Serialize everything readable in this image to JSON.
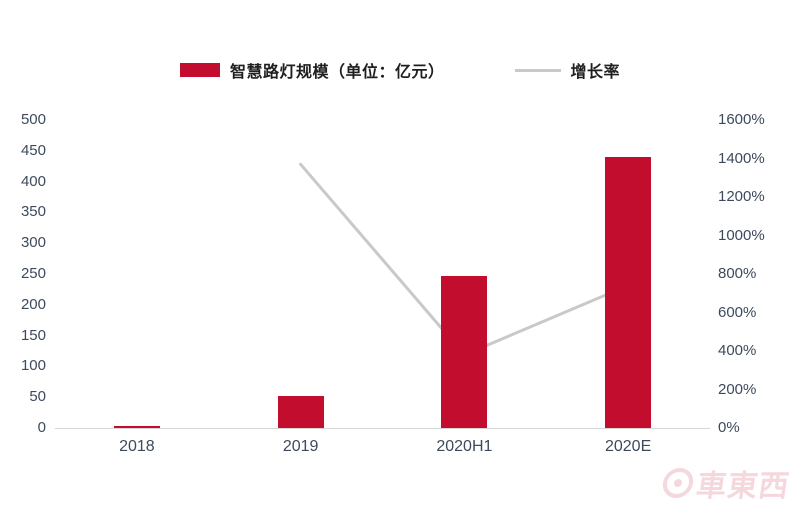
{
  "legend": {
    "bar_label": "智慧路灯规模（单位：亿元）",
    "line_label": "增长率"
  },
  "watermark": "車東西",
  "colors": {
    "bar": "#c30d2f",
    "line": "#c9c9c9",
    "axis_text": "#3d4a5c",
    "axis_line": "#d6d6d6"
  },
  "chart_data": {
    "type": "bar",
    "subtype": "bar+line combo",
    "title": "",
    "categories": [
      "2018",
      "2019",
      "2020H1",
      "2020E"
    ],
    "series": [
      {
        "name": "智慧路灯规模（单位：亿元）",
        "type": "bar",
        "axis": "left",
        "color": "#c30d2f",
        "values": [
          3,
          52,
          247,
          440
        ]
      },
      {
        "name": "增长率",
        "type": "line",
        "axis": "right",
        "color": "#c9c9c9",
        "values": [
          null,
          1370,
          380,
          740
        ]
      }
    ],
    "left_axis": {
      "min": 0,
      "max": 500,
      "step": 50,
      "tick_labels": [
        "500",
        "450",
        "400",
        "350",
        "300",
        "250",
        "200",
        "150",
        "100",
        "50",
        "0"
      ]
    },
    "right_axis": {
      "min": 0,
      "max": 1600,
      "step": 200,
      "suffix": "%",
      "tick_labels": [
        "1600%",
        "1400%",
        "1200%",
        "1000%",
        "800%",
        "600%",
        "400%",
        "200%",
        "0%"
      ]
    },
    "grid": false,
    "legend_position": "top-center"
  }
}
